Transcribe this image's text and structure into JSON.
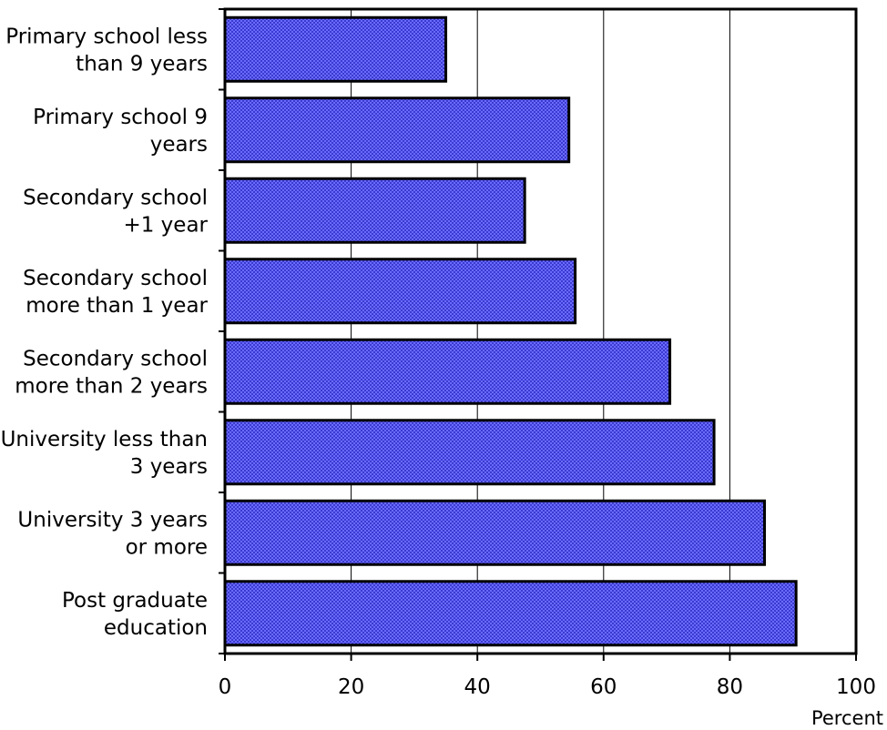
{
  "chart_data": {
    "type": "bar",
    "orientation": "horizontal",
    "title": "",
    "xlabel": "Percent",
    "ylabel": "",
    "xlim": [
      0,
      100
    ],
    "xticks": [
      0,
      20,
      40,
      60,
      80,
      100
    ],
    "grid": true,
    "legend": "none",
    "categories": [
      [
        "Primary school less",
        "than 9 years"
      ],
      [
        "Primary school 9",
        "years"
      ],
      [
        "Secondary school",
        "+1 year"
      ],
      [
        "Secondary school",
        "more than 1 year"
      ],
      [
        "Secondary school",
        "more than 2 years"
      ],
      [
        "University less than",
        "3 years"
      ],
      [
        "University 3 years",
        "or more"
      ],
      [
        "Post graduate",
        "education"
      ]
    ],
    "values": [
      35.0,
      54.5,
      47.5,
      55.5,
      70.5,
      77.5,
      85.5,
      90.5
    ],
    "bar_color": "#6b6bff",
    "bar_pattern_color": "#3a3ad0",
    "bar_border": "#000000"
  }
}
